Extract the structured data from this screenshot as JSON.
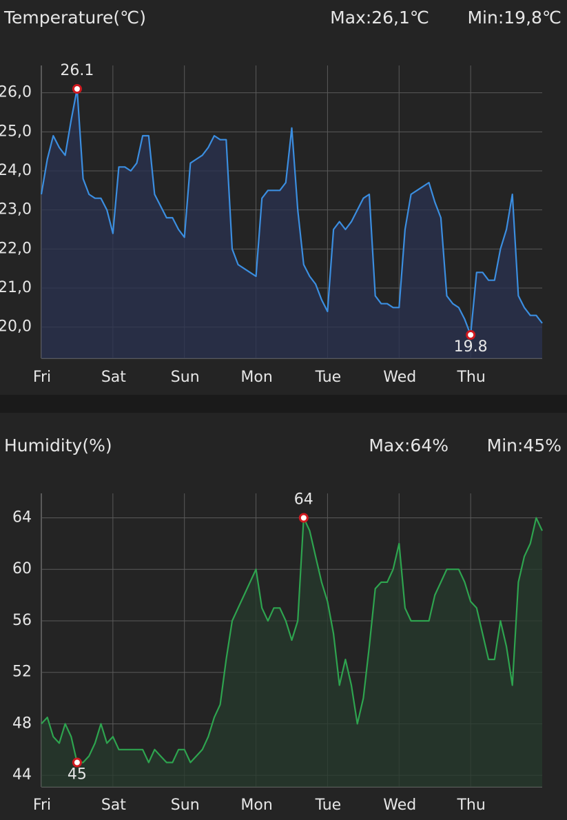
{
  "chart_data": [
    {
      "type": "line",
      "title": "Temperature(℃)",
      "max_label": "Max:26,1℃",
      "min_label": "Min:19,8℃",
      "x": [
        0,
        2,
        4,
        6,
        8,
        10,
        12,
        14,
        16,
        18,
        20,
        22,
        24,
        26,
        28,
        30,
        32,
        34,
        36,
        38,
        40,
        42,
        44,
        46,
        48,
        50,
        52,
        54,
        56,
        58,
        60,
        62,
        64,
        66,
        68,
        70,
        72,
        74,
        76,
        78,
        80,
        82,
        84,
        86,
        88,
        90,
        92,
        94,
        96,
        98,
        100,
        102,
        104,
        106,
        108,
        110,
        112,
        114,
        116,
        118,
        120,
        122,
        124,
        126,
        128,
        130,
        132,
        134,
        136,
        138,
        140,
        142,
        144,
        146,
        148,
        150,
        152,
        154,
        156,
        158,
        160,
        162,
        164,
        166,
        168
      ],
      "values": [
        23.4,
        24.3,
        24.9,
        24.6,
        24.4,
        25.3,
        26.1,
        23.8,
        23.4,
        23.3,
        23.3,
        23.0,
        22.4,
        24.1,
        24.1,
        24.0,
        24.2,
        24.9,
        24.9,
        23.4,
        23.1,
        22.8,
        22.8,
        22.5,
        22.3,
        24.2,
        24.3,
        24.4,
        24.6,
        24.9,
        24.8,
        24.8,
        22.0,
        21.6,
        21.5,
        21.4,
        21.3,
        23.3,
        23.5,
        23.5,
        23.5,
        23.7,
        25.1,
        23.0,
        21.6,
        21.3,
        21.1,
        20.7,
        20.4,
        22.5,
        22.7,
        22.5,
        22.7,
        23.0,
        23.3,
        23.4,
        20.8,
        20.6,
        20.6,
        20.5,
        20.5,
        22.5,
        23.4,
        23.5,
        23.6,
        23.7,
        23.2,
        22.8,
        20.8,
        20.6,
        20.5,
        20.2,
        19.8,
        21.4,
        21.4,
        21.2,
        21.2,
        22.0,
        22.5,
        23.4,
        20.8,
        20.5,
        20.3,
        20.3,
        20.1
      ],
      "color": "#3b8ee0",
      "fill": "#2a3150",
      "markers": [
        {
          "x": 12,
          "y": 26.1
        },
        {
          "x": 144,
          "y": 19.8
        }
      ],
      "xlim": [
        0,
        168
      ],
      "xticks": [
        {
          "value": 0,
          "label": "Fri"
        },
        {
          "value": 24,
          "label": "Sat"
        },
        {
          "value": 48,
          "label": "Sun"
        },
        {
          "value": 72,
          "label": "Mon"
        },
        {
          "value": 96,
          "label": "Tue"
        },
        {
          "value": 120,
          "label": "Wed"
        },
        {
          "value": 144,
          "label": "Thu"
        }
      ],
      "ylim": [
        19.2,
        26.7
      ],
      "yticks": [
        {
          "value": 20,
          "label": "20,0"
        },
        {
          "value": 21,
          "label": "21,0"
        },
        {
          "value": 22,
          "label": "22,0"
        },
        {
          "value": 23,
          "label": "23,0"
        },
        {
          "value": 24,
          "label": "24,0"
        },
        {
          "value": 25,
          "label": "25,0"
        },
        {
          "value": 26,
          "label": "26,0"
        }
      ],
      "grid": true
    },
    {
      "type": "line",
      "title": "Humidity(%)",
      "max_label": "Max:64%",
      "min_label": "Min:45%",
      "x": [
        0,
        2,
        4,
        6,
        8,
        10,
        12,
        14,
        16,
        18,
        20,
        22,
        24,
        26,
        28,
        30,
        32,
        34,
        36,
        38,
        40,
        42,
        44,
        46,
        48,
        50,
        52,
        54,
        56,
        58,
        60,
        62,
        64,
        66,
        68,
        70,
        72,
        74,
        76,
        78,
        80,
        82,
        84,
        86,
        88,
        90,
        92,
        94,
        96,
        98,
        100,
        102,
        104,
        106,
        108,
        110,
        112,
        114,
        116,
        118,
        120,
        122,
        124,
        126,
        128,
        130,
        132,
        134,
        136,
        138,
        140,
        142,
        144,
        146,
        148,
        150,
        152,
        154,
        156,
        158,
        160,
        162,
        164,
        166,
        168
      ],
      "values": [
        48,
        48.5,
        47,
        46.5,
        48,
        47,
        45,
        45,
        45.5,
        46.5,
        48,
        46.5,
        47,
        46,
        46,
        46,
        46,
        46,
        45,
        46,
        45.5,
        45,
        45,
        46,
        46,
        45,
        45.5,
        46,
        47,
        48.5,
        49.5,
        53,
        56,
        57,
        58,
        59,
        60,
        57,
        56,
        57,
        57,
        56,
        54.5,
        56,
        64,
        63,
        61,
        59,
        57.5,
        55,
        51,
        53,
        51,
        48,
        50,
        54,
        58.5,
        59,
        59,
        60,
        62,
        57,
        56,
        56,
        56,
        56,
        58,
        59,
        60,
        60,
        60,
        59,
        57.5,
        57,
        55,
        53,
        53,
        56,
        54,
        51,
        59,
        61,
        62,
        64,
        63
      ],
      "color": "#2ea44f",
      "fill": "#263a2c",
      "markers": [
        {
          "x": 88,
          "y": 64
        },
        {
          "x": 12,
          "y": 45
        }
      ],
      "xlim": [
        0,
        168
      ],
      "xticks": [
        {
          "value": 0,
          "label": "Fri"
        },
        {
          "value": 24,
          "label": "Sat"
        },
        {
          "value": 48,
          "label": "Sun"
        },
        {
          "value": 72,
          "label": "Mon"
        },
        {
          "value": 96,
          "label": "Tue"
        },
        {
          "value": 120,
          "label": "Wed"
        },
        {
          "value": 144,
          "label": "Thu"
        }
      ],
      "ylim": [
        43.1,
        65.9
      ],
      "yticks": [
        44,
        48,
        52,
        56,
        60,
        64
      ],
      "grid": true
    }
  ]
}
